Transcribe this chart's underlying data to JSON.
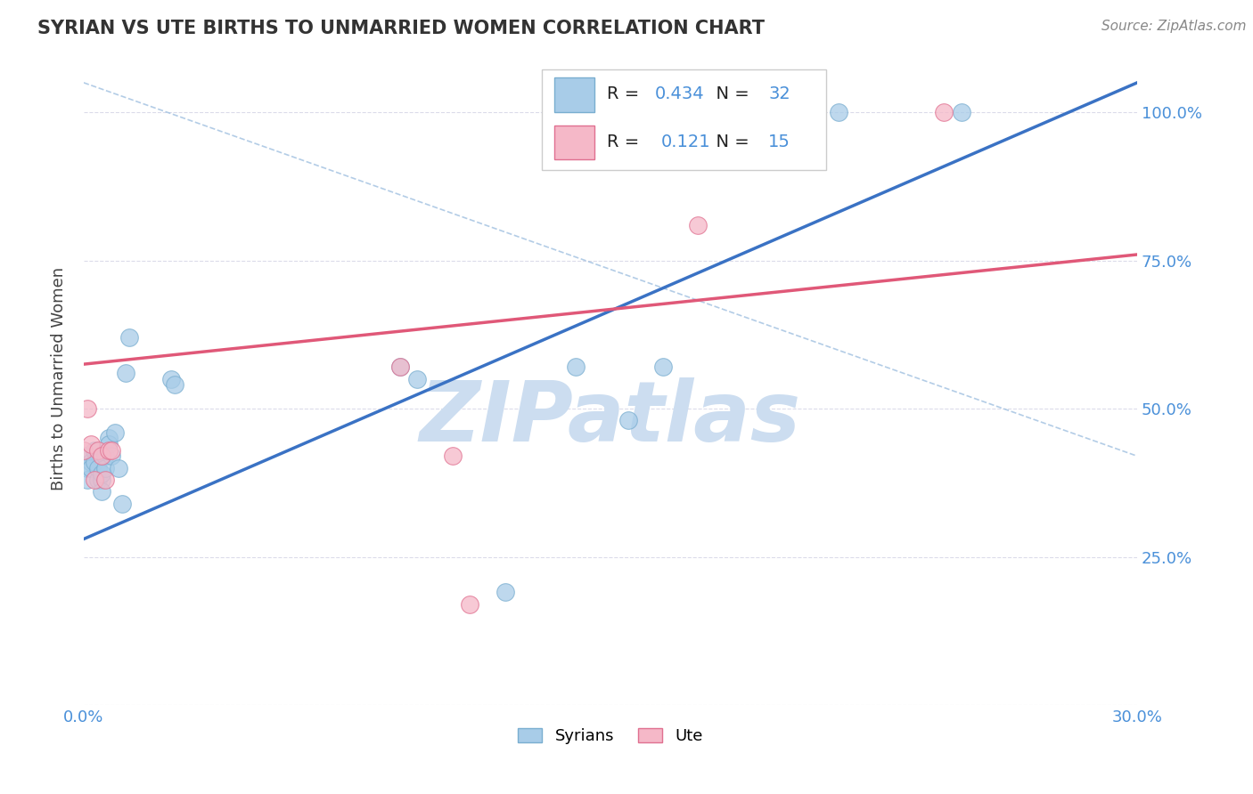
{
  "title": "SYRIAN VS UTE BIRTHS TO UNMARRIED WOMEN CORRELATION CHART",
  "source": "Source: ZipAtlas.com",
  "ylabel": "Births to Unmarried Women",
  "legend_r_blue": "0.434",
  "legend_n_blue": "32",
  "legend_r_pink": "0.121",
  "legend_n_pink": "15",
  "blue_scatter_color": "#a8cce8",
  "blue_edge_color": "#7aaed0",
  "pink_scatter_color": "#f5b8c8",
  "pink_edge_color": "#e07090",
  "blue_line_color": "#3a72c4",
  "pink_line_color": "#e05878",
  "dashed_line_color": "#a0c0e0",
  "watermark_color": "#ccddf0",
  "background_color": "#ffffff",
  "grid_color": "#d8d8e8",
  "x_min": 0.0,
  "x_max": 0.3,
  "y_min": 0.0,
  "y_max": 1.1,
  "blue_line_x0": 0.0,
  "blue_line_y0": 0.28,
  "blue_line_x1": 0.3,
  "blue_line_y1": 1.05,
  "pink_line_x0": 0.0,
  "pink_line_y0": 0.575,
  "pink_line_x1": 0.3,
  "pink_line_y1": 0.76,
  "dash_line_x0": 0.0,
  "dash_line_y0": 1.05,
  "dash_line_x1": 0.3,
  "dash_line_y1": 0.42,
  "syrians_x": [
    0.0,
    0.001,
    0.001,
    0.002,
    0.002,
    0.003,
    0.003,
    0.004,
    0.004,
    0.005,
    0.005,
    0.005,
    0.006,
    0.006,
    0.007,
    0.007,
    0.008,
    0.009,
    0.01,
    0.011,
    0.012,
    0.013,
    0.025,
    0.026,
    0.09,
    0.095,
    0.12,
    0.14,
    0.155,
    0.165,
    0.215,
    0.25
  ],
  "syrians_y": [
    0.42,
    0.4,
    0.38,
    0.41,
    0.4,
    0.43,
    0.41,
    0.38,
    0.4,
    0.38,
    0.36,
    0.39,
    0.42,
    0.4,
    0.45,
    0.44,
    0.42,
    0.46,
    0.4,
    0.34,
    0.56,
    0.62,
    0.55,
    0.54,
    0.57,
    0.55,
    0.19,
    0.57,
    0.48,
    0.57,
    1.0,
    1.0
  ],
  "ute_x": [
    0.0,
    0.001,
    0.002,
    0.003,
    0.004,
    0.005,
    0.006,
    0.007,
    0.008,
    0.09,
    0.105,
    0.11,
    0.175,
    0.185,
    0.245
  ],
  "ute_y": [
    0.43,
    0.5,
    0.44,
    0.38,
    0.43,
    0.42,
    0.38,
    0.43,
    0.43,
    0.57,
    0.42,
    0.17,
    0.81,
    1.0,
    1.0
  ]
}
